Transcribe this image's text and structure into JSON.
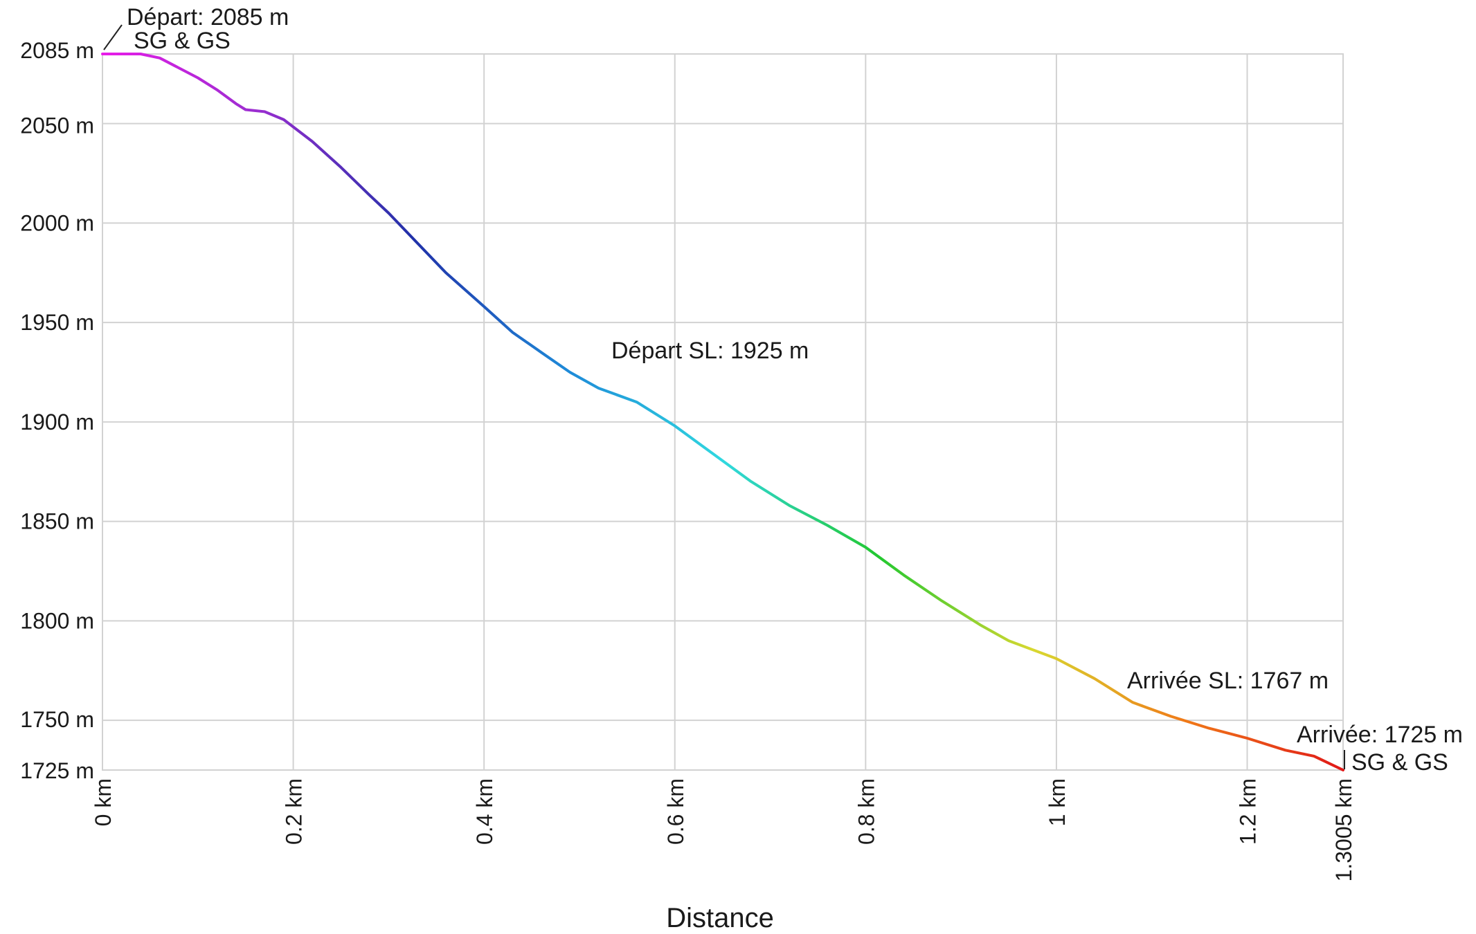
{
  "chart_data": {
    "type": "line",
    "title": "",
    "xlabel": "Distance",
    "ylabel": "",
    "xlim": [
      0,
      1.3005
    ],
    "ylim": [
      1725,
      2085
    ],
    "grid": true,
    "x_ticks": [
      {
        "value": 0,
        "label": "0 km"
      },
      {
        "value": 0.2,
        "label": "0.2 km"
      },
      {
        "value": 0.4,
        "label": "0.4 km"
      },
      {
        "value": 0.6,
        "label": "0.6 km"
      },
      {
        "value": 0.8,
        "label": "0.8 km"
      },
      {
        "value": 1.0,
        "label": "1 km"
      },
      {
        "value": 1.2,
        "label": "1.2 km"
      },
      {
        "value": 1.3005,
        "label": "1.3005 km"
      }
    ],
    "y_ticks": [
      {
        "value": 2085,
        "label": "2085 m"
      },
      {
        "value": 2050,
        "label": "2050 m"
      },
      {
        "value": 2000,
        "label": "2000 m"
      },
      {
        "value": 1950,
        "label": "1950 m"
      },
      {
        "value": 1900,
        "label": "1900 m"
      },
      {
        "value": 1850,
        "label": "1850 m"
      },
      {
        "value": 1800,
        "label": "1800 m"
      },
      {
        "value": 1750,
        "label": "1750 m"
      },
      {
        "value": 1725,
        "label": "1725 m"
      }
    ],
    "series": [
      {
        "x": [
          0,
          0.04,
          0.06,
          0.08,
          0.1,
          0.12,
          0.14,
          0.15,
          0.17,
          0.19,
          0.22,
          0.25,
          0.28,
          0.3,
          0.33,
          0.36,
          0.4,
          0.43,
          0.46,
          0.49,
          0.52,
          0.56,
          0.6,
          0.64,
          0.68,
          0.72,
          0.76,
          0.8,
          0.84,
          0.88,
          0.92,
          0.95,
          1.0,
          1.04,
          1.08,
          1.12,
          1.16,
          1.2,
          1.24,
          1.27,
          1.3005
        ],
        "y": [
          2085,
          2085,
          2083,
          2078,
          2073,
          2067,
          2060,
          2057,
          2056,
          2052,
          2041,
          2028,
          2014,
          2005,
          1990,
          1975,
          1958,
          1945,
          1935,
          1925,
          1917,
          1910,
          1898,
          1884,
          1870,
          1858,
          1848,
          1837,
          1823,
          1810,
          1798,
          1790,
          1781,
          1771,
          1759,
          1752,
          1746,
          1741,
          1735,
          1732,
          1725
        ]
      }
    ],
    "colors": [
      "#e81ce8",
      "#9a2ed0",
      "#2030a8",
      "#1e8ad8",
      "#30d8e0",
      "#22c830",
      "#d8d830",
      "#f07818",
      "#e01818"
    ],
    "annotations": [
      {
        "x": 0,
        "y": 2085,
        "lines": [
          "Départ: 2085 m",
          "SG & GS"
        ]
      },
      {
        "x": 0.52,
        "y": 1925,
        "lines": [
          "Départ SL: 1925 m"
        ]
      },
      {
        "x": 1.08,
        "y": 1767,
        "lines": [
          "Arrivée SL: 1767 m"
        ]
      },
      {
        "x": 1.3005,
        "y": 1725,
        "lines": [
          "Arrivée: 1725 m",
          "SG & GS"
        ]
      }
    ]
  }
}
